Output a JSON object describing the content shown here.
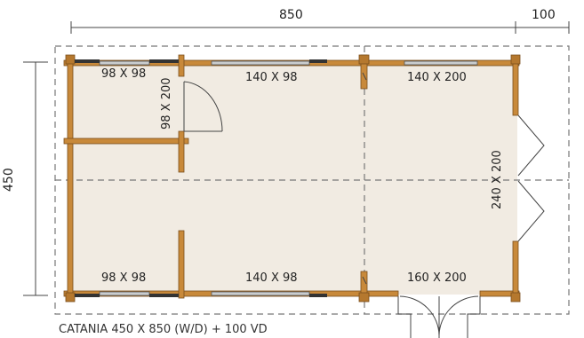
{
  "dimensions": {
    "top_main": "850",
    "top_extra": "100",
    "side": "450"
  },
  "labels": {
    "win_top_left": "98 X 98",
    "door_inner": "98 X 200",
    "win_top_mid": "140 X 98",
    "door_top_right": "140 X 200",
    "door_right": "240 X 200",
    "win_bottom_left": "98 X 98",
    "win_bottom_mid": "140 X 98",
    "door_bottom_right": "160 X 200"
  },
  "caption": "CATANIA 450 X 850 (W/D) + 100 VD",
  "colors": {
    "floor": "#f1ebe2",
    "wall": "#c8893a",
    "wall_dark": "#7a4e1c",
    "dash": "#777777",
    "window": "#bfc4c6"
  }
}
